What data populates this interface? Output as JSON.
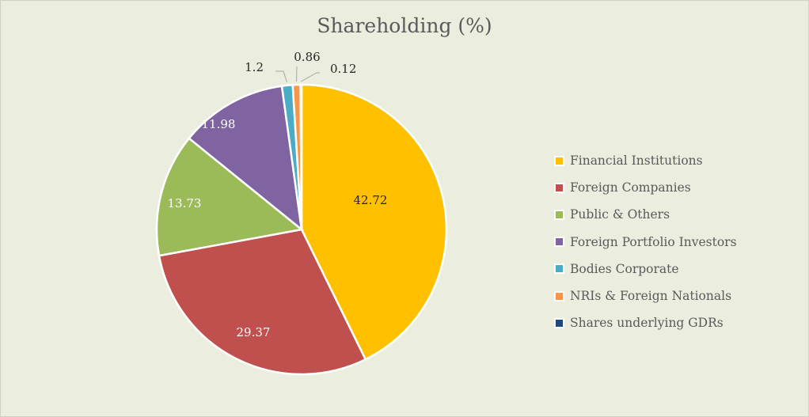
{
  "title": "Shareholding (%)",
  "legend": [
    {
      "label": "Financial Institutions",
      "color": "#ffc000"
    },
    {
      "label": "Foreign Companies",
      "color": "#c0504d"
    },
    {
      "label": "Public & Others",
      "color": "#9bbb59"
    },
    {
      "label": "Foreign Portfolio Investors",
      "color": "#8064a2"
    },
    {
      "label": "Bodies Corporate",
      "color": "#4bacc6"
    },
    {
      "label": "NRIs & Foreign Nationals",
      "color": "#f79646"
    },
    {
      "label": "Shares underlying GDRs",
      "color": "#1f497d"
    }
  ],
  "chart_data": {
    "type": "pie",
    "title": "Shareholding (%)",
    "categories": [
      "Financial Institutions",
      "Foreign Companies",
      "Public & Others",
      "Foreign Portfolio Investors",
      "Bodies Corporate",
      "NRIs & Foreign Nationals",
      "Shares underlying GDRs"
    ],
    "values": [
      42.72,
      29.37,
      13.73,
      11.98,
      1.2,
      0.86,
      0.12
    ],
    "labels": [
      "42.72",
      "29.37",
      "13.73",
      "11.98",
      "1.2",
      "0.86",
      "0.12"
    ],
    "colors": [
      "#ffc000",
      "#c0504d",
      "#9bbb59",
      "#8064a2",
      "#4bacc6",
      "#f79646",
      "#1f497d"
    ],
    "legend_position": "right"
  }
}
